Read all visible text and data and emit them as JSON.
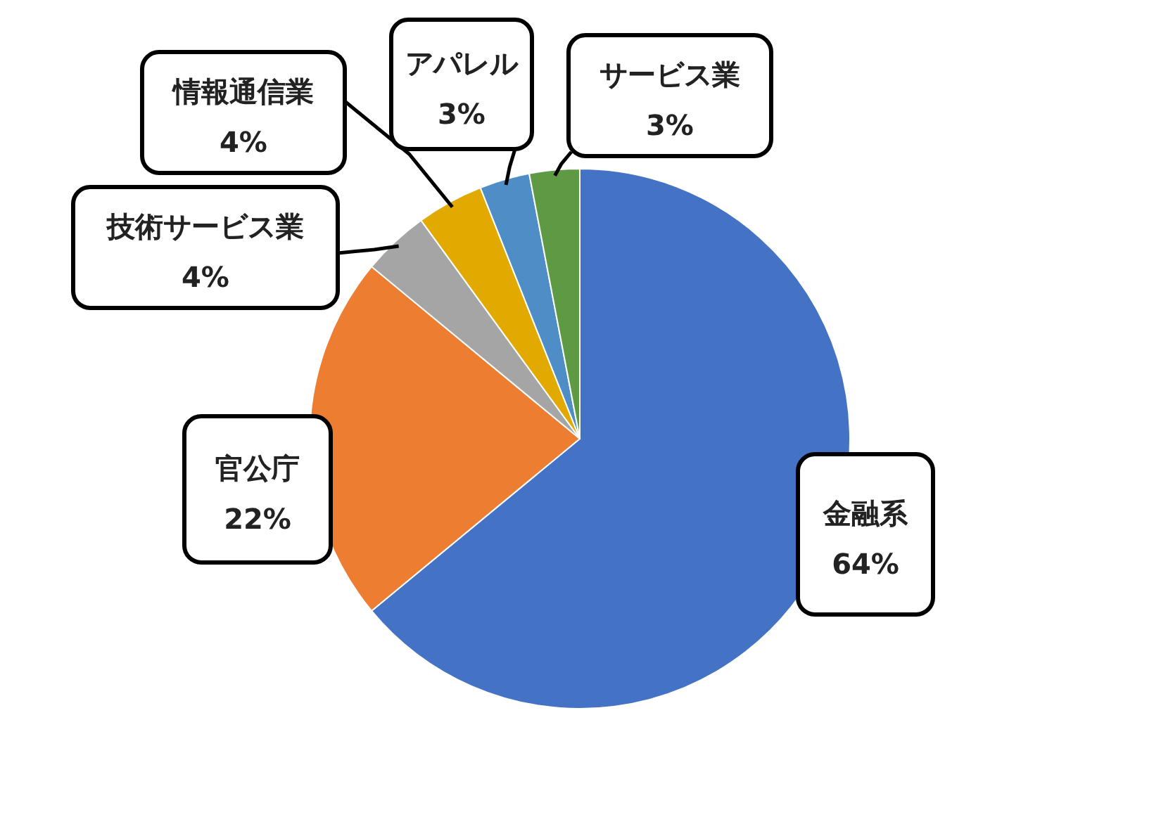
{
  "chart_data": {
    "type": "pie",
    "categories": [
      "金融系",
      "官公庁",
      "技術サービス業",
      "情報通信業",
      "アパレル",
      "サービス業"
    ],
    "values": [
      64,
      22,
      4,
      4,
      3,
      3
    ],
    "value_labels": [
      "64%",
      "22%",
      "4%",
      "4%",
      "3%",
      "3%"
    ],
    "colors": [
      "#4472c4",
      "#ed7d31",
      "#a5a5a5",
      "#e2aa00",
      "#4e8dc6",
      "#5e9a44"
    ]
  }
}
